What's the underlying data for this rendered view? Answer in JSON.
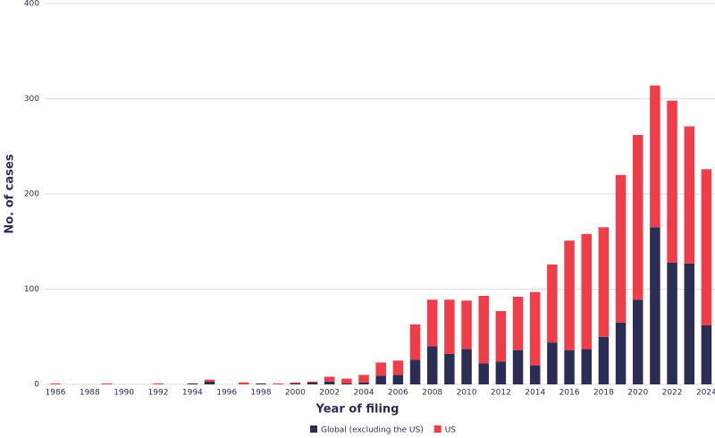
{
  "chart_data": {
    "type": "stacked_bar",
    "x_label": "Year of filing",
    "y_label": "No. of cases",
    "categories": [
      "1986",
      null,
      "1988",
      null,
      "1990",
      null,
      "1992",
      null,
      "1994",
      null,
      "1996",
      null,
      "1998",
      null,
      "2000",
      null,
      "2002",
      null,
      "2004",
      null,
      "2006",
      null,
      "2008",
      null,
      "2010",
      null,
      "2012",
      null,
      "2014",
      null,
      "2016",
      null,
      "2018",
      null,
      "2020",
      null,
      "2022",
      null,
      "2024"
    ],
    "series": [
      {
        "name": "Global (excluding the US)",
        "color": "#2b2d55",
        "values": [
          0,
          0,
          0,
          0,
          0,
          0,
          0,
          0,
          1,
          3,
          0,
          0,
          1,
          0,
          1,
          2,
          3,
          1,
          2,
          9,
          10,
          26,
          40,
          32,
          37,
          22,
          24,
          36,
          20,
          44,
          36,
          37,
          50,
          65,
          89,
          165,
          128,
          127,
          62
        ]
      },
      {
        "name": "US",
        "color": "#ef3e4a",
        "values": [
          1,
          0,
          0,
          1,
          0,
          0,
          1,
          0,
          0,
          2,
          0,
          2,
          0,
          1,
          1,
          1,
          5,
          5,
          8,
          14,
          15,
          37,
          49,
          57,
          51,
          71,
          53,
          56,
          77,
          82,
          115,
          121,
          115,
          155,
          173,
          149,
          170,
          144,
          164
        ]
      }
    ],
    "ylim": [
      0,
      400
    ],
    "yticks": [
      0,
      100,
      200,
      300,
      400
    ],
    "grid": true
  }
}
